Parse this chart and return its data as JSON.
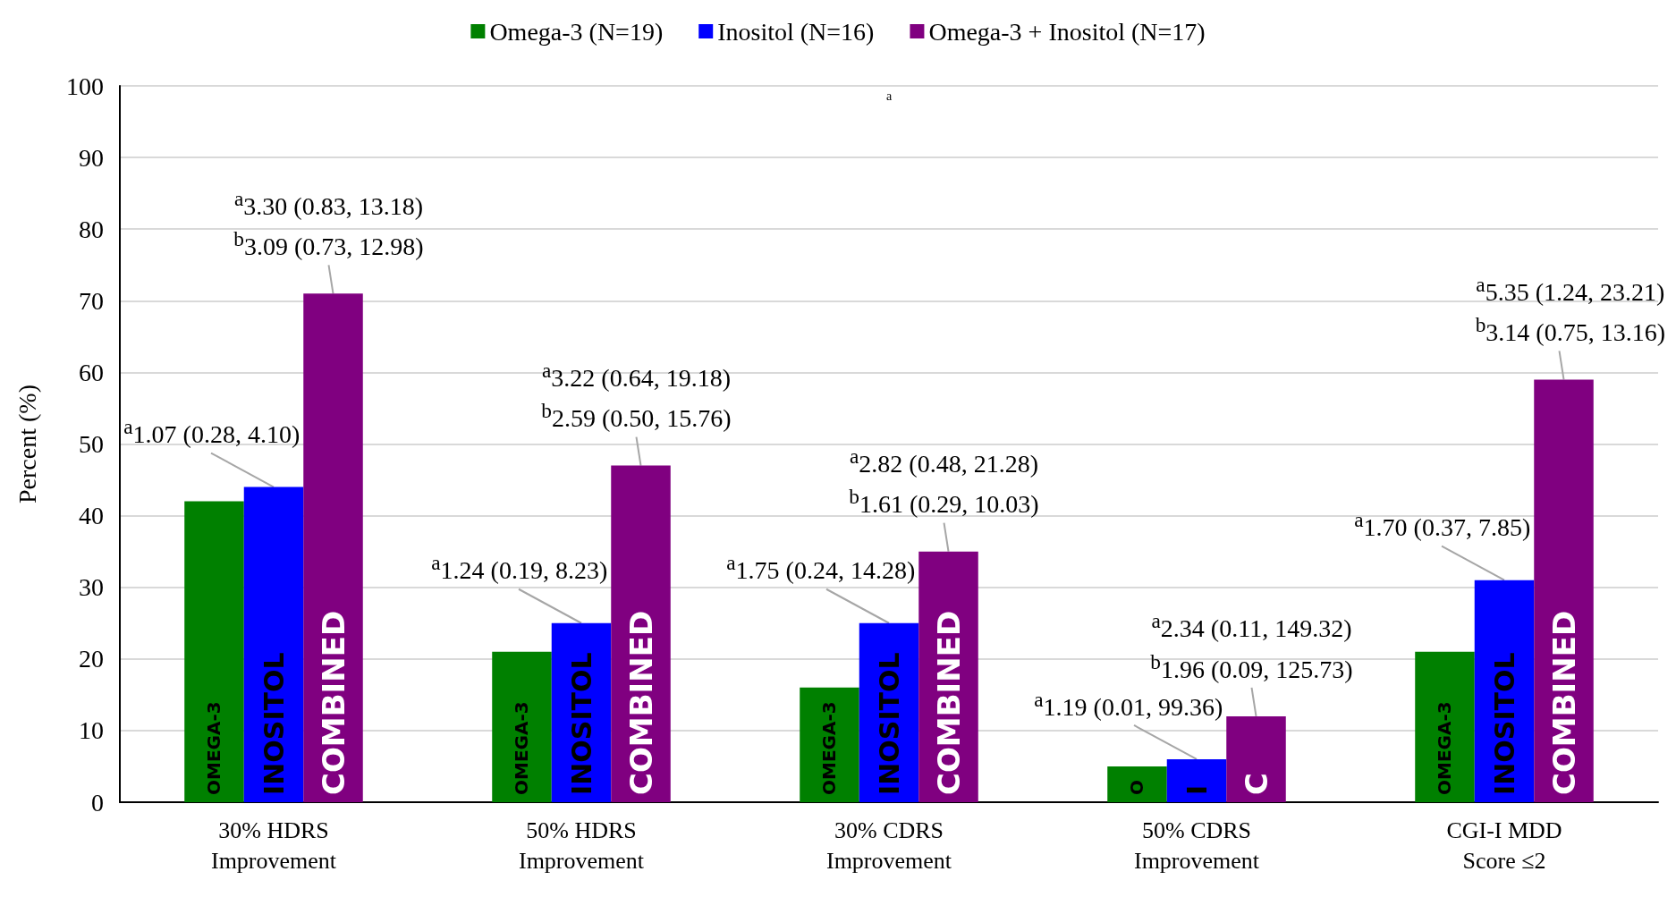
{
  "chart_data": {
    "type": "bar",
    "ylabel": "Percent (%)",
    "categories": [
      "30% HDRS\nImprovement",
      "50% HDRS\nImprovement",
      "30% CDRS\nImprovement",
      "50% CDRS\nImprovement",
      "CGI-I MDD\nScore ≤2"
    ],
    "series": [
      {
        "name": "Omega-3 (N=19)",
        "color": "#008000",
        "values": [
          42,
          21,
          16,
          5,
          21
        ],
        "value_labels": [
          "OMEGA-3",
          "OMEGA-3",
          "OMEGA-3",
          "O",
          "OMEGA-3"
        ]
      },
      {
        "name": "Inositol (N=16)",
        "color": "#0000ff",
        "values": [
          44,
          25,
          25,
          6,
          31
        ],
        "value_labels": [
          "INOSITOL",
          "INOSITOL",
          "INOSITOL",
          "I",
          "INOSITOL"
        ]
      },
      {
        "name": "Omega-3 + Inositol (N=17)",
        "color": "#800080",
        "values": [
          71,
          47,
          35,
          12,
          59
        ],
        "value_labels": [
          "COMBINED",
          "COMBINED",
          "COMBINED",
          "C",
          "COMBINED"
        ]
      }
    ],
    "ylim": [
      0,
      100
    ],
    "yticks": [
      0,
      10,
      20,
      30,
      40,
      50,
      60,
      70,
      80,
      90,
      100
    ],
    "grid": "y",
    "legend": "top",
    "annotations": [
      {
        "text": "$^{a}$1.07 (0.28, 4.10)",
        "x": "30% HDRS\nImprovement",
        "y": 44
      },
      "$^{a}$3.30 (0.83, 13.18)\n$^{b}$3.09 (0.73, 12.98)",
      {
        "text": "$^{a}$1.24 (0.19, 8.23)",
        "x": "50% HDRS\nImprovement",
        "y": 25
      },
      "$^{a}$3.22 (0.64, 19.18)\n$^{b}$2.59 (0.50, 15.76)",
      {
        "text": "$^{a}$1.75 (0.24, 14.28)",
        "x": "30% CDRS\nImprovement",
        "y": 25
      },
      "$^{a}$2.82 (0.48, 21.28)\n$^{b}$1.61 (0.29, 10.03)",
      {
        "text": "$^{a}$1.19 (0.01, 99.36)",
        "x": "50% CDRS\nImprovement",
        "y": 6
      },
      "$^{a}$2.34 (0.11, 149.32)\n$^{b}$1.96 (0.09, 125.73)",
      {
        "text": "$^{a}$1.70 (0.37, 7.85)",
        "x": "CGI-I MDD\nScore ≤2",
        "y": 31
      },
      "$^{a}$5.35 (1.24, 23.21)\n$^{b}$3.14 (0.75, 13.16)",
      "a"
    ]
  }
}
